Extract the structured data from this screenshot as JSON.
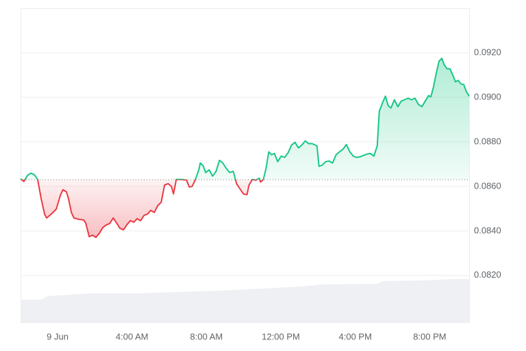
{
  "chart_data": {
    "type": "line",
    "x": [
      -1.99,
      -1.81,
      -1.62,
      -1.44,
      -1.25,
      -1.07,
      -0.88,
      -0.7,
      -0.59,
      -0.33,
      -0.07,
      0.15,
      0.29,
      0.48,
      0.59,
      0.74,
      0.88,
      1.14,
      1.4,
      1.51,
      1.7,
      1.88,
      2.06,
      2.25,
      2.43,
      2.62,
      2.8,
      2.99,
      3.17,
      3.35,
      3.54,
      3.72,
      3.91,
      4.09,
      4.28,
      4.46,
      4.65,
      4.83,
      5.01,
      5.2,
      5.38,
      5.57,
      5.75,
      5.94,
      6.12,
      6.23,
      6.38,
      6.67,
      6.93,
      7.08,
      7.23,
      7.41,
      7.59,
      7.67,
      7.82,
      7.96,
      8.15,
      8.33,
      8.52,
      8.7,
      8.88,
      9.07,
      9.25,
      9.44,
      9.62,
      9.81,
      9.99,
      10.18,
      10.29,
      10.47,
      10.65,
      10.84,
      10.91,
      11.06,
      11.21,
      11.35,
      11.5,
      11.65,
      11.83,
      12.02,
      12.2,
      12.39,
      12.57,
      12.76,
      12.94,
      13.12,
      13.31,
      13.49,
      13.68,
      13.94,
      14.05,
      14.23,
      14.41,
      14.6,
      14.78,
      14.97,
      15.15,
      15.34,
      15.52,
      15.71,
      15.89,
      16.07,
      16.26,
      16.44,
      16.63,
      16.81,
      17.0,
      17.18,
      17.29,
      17.47,
      17.62,
      17.77,
      17.92,
      18.1,
      18.29,
      18.47,
      18.65,
      18.84,
      19.02,
      19.21,
      19.39,
      19.58,
      19.76,
      19.94,
      20.06,
      20.2,
      20.35,
      20.5,
      20.65,
      20.79,
      20.94,
      21.09,
      21.24,
      21.38,
      21.53,
      21.68,
      21.83,
      21.97,
      22.12
    ],
    "series": [
      {
        "color": "#16c784",
        "negative_color": "#ea3943",
        "values": [
          0.08634,
          0.08622,
          0.08649,
          0.08659,
          0.08653,
          0.08631,
          0.08544,
          0.08476,
          0.08458,
          0.08476,
          0.08498,
          0.0856,
          0.08585,
          0.08575,
          0.08544,
          0.08483,
          0.08458,
          0.08452,
          0.08449,
          0.08436,
          0.08374,
          0.08381,
          0.08371,
          0.0839,
          0.08415,
          0.08427,
          0.08433,
          0.08458,
          0.08436,
          0.08412,
          0.08405,
          0.08427,
          0.08446,
          0.08439,
          0.08455,
          0.08446,
          0.0847,
          0.08476,
          0.08492,
          0.08483,
          0.08513,
          0.08529,
          0.08606,
          0.08612,
          0.086,
          0.08566,
          0.08631,
          0.08631,
          0.08628,
          0.08597,
          0.086,
          0.08631,
          0.08674,
          0.08705,
          0.08693,
          0.08662,
          0.08674,
          0.08646,
          0.08668,
          0.08717,
          0.08705,
          0.0868,
          0.08662,
          0.08668,
          0.08612,
          0.08588,
          0.08566,
          0.08563,
          0.08606,
          0.08631,
          0.08628,
          0.08637,
          0.08619,
          0.08631,
          0.08683,
          0.08755,
          0.08742,
          0.08748,
          0.08711,
          0.08736,
          0.0873,
          0.08751,
          0.08785,
          0.08798,
          0.08773,
          0.08785,
          0.08804,
          0.08792,
          0.08792,
          0.08782,
          0.0869,
          0.08696,
          0.08711,
          0.08714,
          0.08705,
          0.08742,
          0.08755,
          0.08767,
          0.08788,
          0.08755,
          0.08736,
          0.0873,
          0.08733,
          0.08739,
          0.08745,
          0.08748,
          0.08736,
          0.08782,
          0.08937,
          0.08977,
          0.09005,
          0.08962,
          0.08952,
          0.08989,
          0.08958,
          0.08983,
          0.08989,
          0.08996,
          0.08989,
          0.08996,
          0.08968,
          0.08958,
          0.08983,
          0.09008,
          0.09002,
          0.09045,
          0.09107,
          0.09162,
          0.09175,
          0.09144,
          0.09128,
          0.09128,
          0.091,
          0.0907,
          0.09076,
          0.0906,
          0.09057,
          0.09026,
          0.09005
        ]
      }
    ],
    "baseline": 0.0863,
    "xlim": [
      -1.99,
      22.12
    ],
    "ylim": [
      0.0799,
      0.094
    ],
    "xticks": [
      {
        "value": 0,
        "label": "9 Jun"
      },
      {
        "value": 4,
        "label": "4:00 AM"
      },
      {
        "value": 8,
        "label": "8:00 AM"
      },
      {
        "value": 12,
        "label": "12:00 PM"
      },
      {
        "value": 16,
        "label": "4:00 PM"
      },
      {
        "value": 20,
        "label": "8:00 PM"
      }
    ],
    "yticks": [
      {
        "value": 0.082,
        "label": "0.0820"
      },
      {
        "value": 0.084,
        "label": "0.0840"
      },
      {
        "value": 0.086,
        "label": "0.0860"
      },
      {
        "value": 0.088,
        "label": "0.0880"
      },
      {
        "value": 0.09,
        "label": "0.0900"
      },
      {
        "value": 0.092,
        "label": "0.0920"
      }
    ],
    "grid": true
  }
}
